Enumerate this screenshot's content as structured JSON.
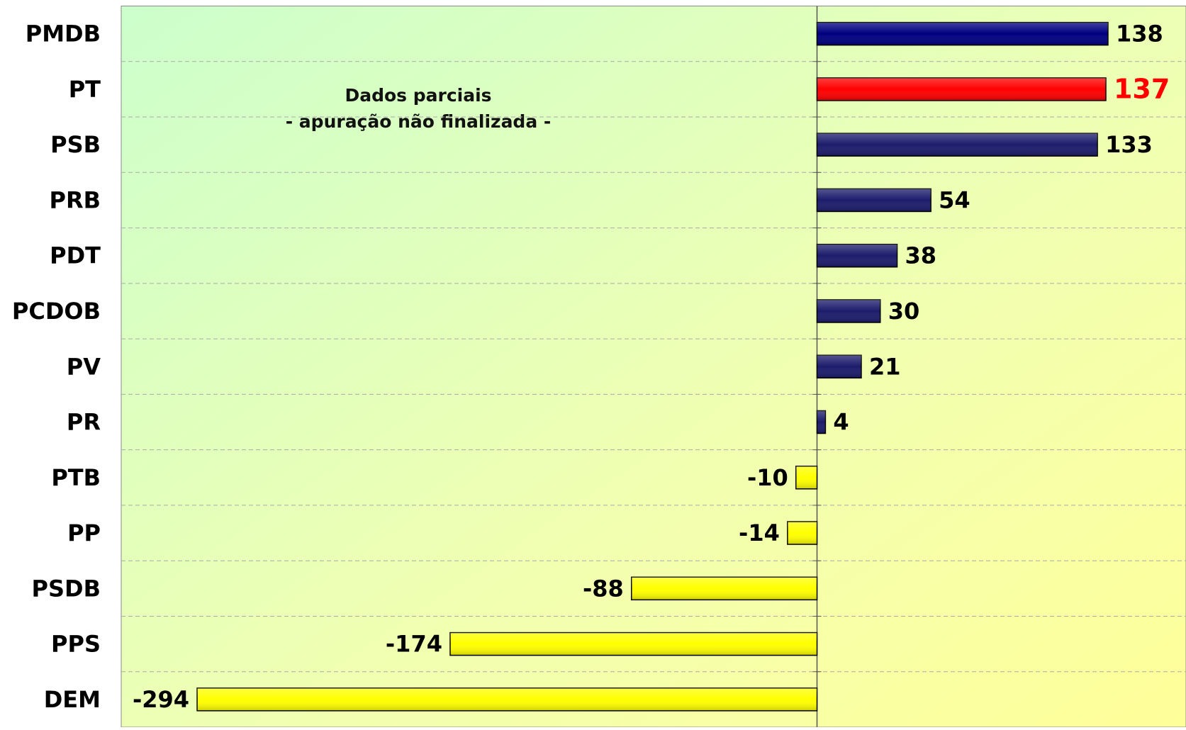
{
  "chart_data": {
    "type": "bar",
    "orientation": "horizontal",
    "categories": [
      "PMDB",
      "PT",
      "PSB",
      "PRB",
      "PDT",
      "PCDOB",
      "PV",
      "PR",
      "PTB",
      "PP",
      "PSDB",
      "PPS",
      "DEM"
    ],
    "values": [
      138,
      137,
      133,
      54,
      38,
      30,
      21,
      4,
      -10,
      -14,
      -88,
      -174,
      -294
    ],
    "colors": [
      "#000080",
      "#ff0000",
      "#1c1c6c",
      "#1c1c6c",
      "#1c1c6c",
      "#1c1c6c",
      "#1c1c6c",
      "#1c1c6c",
      "#ffff00",
      "#ffff00",
      "#ffff00",
      "#ffff00",
      "#ffff00"
    ],
    "label_colors": [
      "#000000",
      "#ff0000",
      "#000000",
      "#000000",
      "#000000",
      "#000000",
      "#000000",
      "#000000",
      "#000000",
      "#000000",
      "#000000",
      "#000000",
      "#000000"
    ],
    "annotations": [
      "Dados parciais",
      "- apuração não finalizada -"
    ],
    "xlim": [
      -330,
      175
    ],
    "grid": true
  }
}
